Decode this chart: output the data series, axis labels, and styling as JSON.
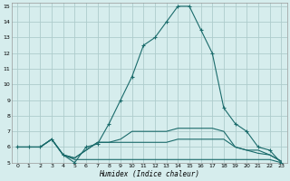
{
  "xlabel": "Humidex (Indice chaleur)",
  "bg_color": "#d6eded",
  "grid_color": "#aecccc",
  "line_color": "#1a6b6b",
  "xlim": [
    -0.5,
    23.5
  ],
  "ylim": [
    5,
    15.2
  ],
  "xticks": [
    0,
    1,
    2,
    3,
    4,
    5,
    6,
    7,
    8,
    9,
    10,
    11,
    12,
    13,
    14,
    15,
    16,
    17,
    18,
    19,
    20,
    21,
    22,
    23
  ],
  "yticks": [
    5,
    6,
    7,
    8,
    9,
    10,
    11,
    12,
    13,
    14,
    15
  ],
  "line1_x": [
    0,
    1,
    2,
    3,
    4,
    5,
    6,
    7,
    8,
    9,
    10,
    11,
    12,
    13,
    14,
    15,
    16,
    17,
    18,
    19,
    20,
    21,
    22,
    23
  ],
  "line1_y": [
    6,
    6,
    6,
    6.5,
    5.5,
    5.0,
    6.0,
    6.2,
    7.5,
    9.0,
    10.5,
    12.5,
    13.0,
    14.0,
    15.0,
    15.0,
    13.5,
    12.0,
    8.5,
    7.5,
    7.0,
    6.0,
    5.8,
    5.0
  ],
  "line2_x": [
    0,
    1,
    2,
    3,
    4,
    5,
    6,
    7,
    8,
    9,
    10,
    11,
    12,
    13,
    14,
    15,
    16,
    17,
    18,
    19,
    20,
    21,
    22,
    23
  ],
  "line2_y": [
    6,
    6,
    6,
    6.5,
    5.5,
    5.2,
    5.2,
    5.2,
    5.2,
    5.2,
    5.2,
    5.2,
    5.2,
    5.2,
    5.2,
    5.2,
    5.2,
    5.2,
    5.2,
    5.2,
    5.2,
    5.2,
    5.2,
    5.0
  ],
  "line3_x": [
    0,
    1,
    2,
    3,
    4,
    5,
    6,
    7,
    8,
    9,
    10,
    11,
    12,
    13,
    14,
    15,
    16,
    17,
    18,
    19,
    20,
    21,
    22,
    23
  ],
  "line3_y": [
    6,
    6,
    6,
    6.5,
    5.5,
    5.3,
    5.8,
    6.3,
    6.3,
    6.3,
    6.3,
    6.3,
    6.3,
    6.3,
    6.5,
    6.5,
    6.5,
    6.5,
    6.5,
    6.0,
    5.8,
    5.6,
    5.5,
    5.1
  ],
  "line4_x": [
    0,
    1,
    2,
    3,
    4,
    5,
    6,
    7,
    8,
    9,
    10,
    11,
    12,
    13,
    14,
    15,
    16,
    17,
    18,
    19,
    20,
    21,
    22,
    23
  ],
  "line4_y": [
    6,
    6,
    6,
    6.5,
    5.5,
    5.3,
    5.8,
    6.3,
    6.3,
    6.5,
    7.0,
    7.0,
    7.0,
    7.0,
    7.2,
    7.2,
    7.2,
    7.2,
    7.0,
    6.0,
    5.8,
    5.8,
    5.5,
    5.1
  ]
}
